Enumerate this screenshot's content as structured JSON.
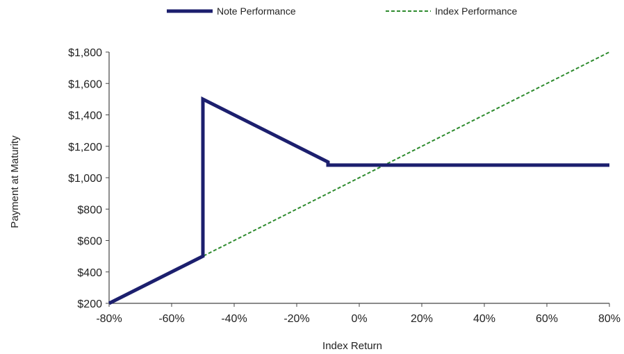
{
  "chart_data": {
    "type": "line",
    "title": "",
    "xlabel": "Index Return",
    "ylabel": "Payment at Maturity",
    "xlim": [
      -80,
      80
    ],
    "ylim": [
      200,
      1800
    ],
    "x_ticks": [
      -80,
      -60,
      -40,
      -20,
      0,
      20,
      40,
      60,
      80
    ],
    "x_tick_labels": [
      "-80%",
      "-60%",
      "-40%",
      "-20%",
      "0%",
      "20%",
      "40%",
      "60%",
      "80%"
    ],
    "y_ticks": [
      200,
      400,
      600,
      800,
      1000,
      1200,
      1400,
      1600,
      1800
    ],
    "y_tick_labels": [
      "$200",
      "$400",
      "$600",
      "$800",
      "$1,000",
      "$1,200",
      "$1,400",
      "$1,600",
      "$1,800"
    ],
    "grid": false,
    "legend_position": "top-center",
    "series": [
      {
        "name": "Note Performance",
        "style": "solid",
        "color": "#1c1f6e",
        "x": [
          -80,
          -50,
          -50,
          -10,
          -10,
          80
        ],
        "y": [
          200,
          500,
          1500,
          1100,
          1080,
          1080
        ]
      },
      {
        "name": "Index Performance",
        "style": "dashed",
        "color": "#2e8b2e",
        "x": [
          -80,
          80
        ],
        "y": [
          200,
          1800
        ]
      }
    ]
  }
}
